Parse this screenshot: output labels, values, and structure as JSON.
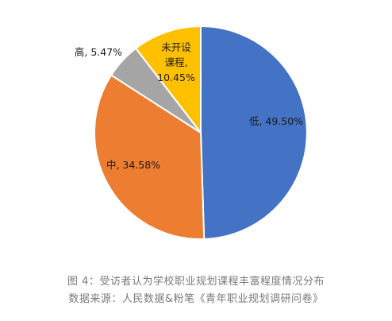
{
  "chart_data": {
    "type": "pie",
    "start_angle_deg": 0,
    "direction": "clockwise",
    "slices": [
      {
        "key": "low",
        "category": "低",
        "value": 49.5,
        "display": "49.50%",
        "color": "#4472C4",
        "label_lines": [
          "低, 49.50%"
        ]
      },
      {
        "key": "mid",
        "category": "中",
        "value": 34.58,
        "display": "34.58%",
        "color": "#ED7D31",
        "label_lines": [
          "中, 34.58%"
        ]
      },
      {
        "key": "high",
        "category": "高",
        "value": 5.47,
        "display": "5.47%",
        "color": "#A5A5A5",
        "label_lines": [
          "高, 5.47%"
        ]
      },
      {
        "key": "notset",
        "category": "未开设课程",
        "value": 10.45,
        "display": "10.45%",
        "color": "#FFC000",
        "label_lines": [
          "未开设",
          "课程,",
          "10.45%"
        ]
      }
    ]
  },
  "caption": {
    "line1": "图 4：受访者认为学校职业规划课程丰富程度情况分布",
    "line2": "数据来源：人民数据&粉笔《青年职业规划调研问卷》"
  }
}
